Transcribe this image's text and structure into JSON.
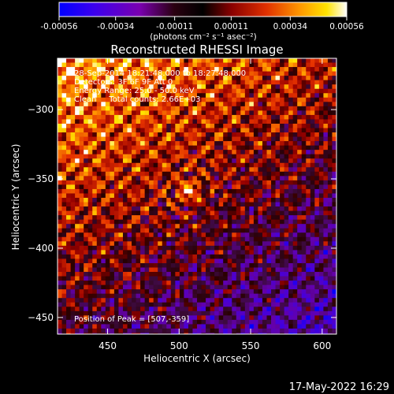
{
  "chart_data": {
    "type": "heatmap",
    "title": "Reconstructed RHESSI Image",
    "xlabel": "Heliocentric X (arcsec)",
    "ylabel": "Heliocentric Y (arcsec)",
    "xlim": [
      415,
      610
    ],
    "ylim": [
      -462,
      -263
    ],
    "x_ticks": [
      450,
      500,
      550,
      600
    ],
    "y_ticks": [
      -300,
      -350,
      -400,
      -450
    ],
    "colorbar": {
      "min": -0.00056,
      "max": 0.00056,
      "ticks": [
        "-0.00056",
        "-0.00034",
        "-0.00011",
        "0.00011",
        "0.00034",
        "0.00056"
      ],
      "tick_values": [
        -0.00056,
        -0.00034,
        -0.00011,
        0.00011,
        0.00034,
        0.00056
      ],
      "unit_label": "(photons cm⁻² s⁻¹ asec⁻²)"
    },
    "annotations": [
      "28-Sep-2014 18:21:48.000 to 18:27:48.000",
      "Detectors: 3F 6F 9F  Att 0",
      "Energy Range: 25.0 - 50.0 keV",
      "Clean     Total counts: 2.66E+03"
    ],
    "peak_text": "Position of Peak = [507,-359]",
    "peak": [
      507,
      -359
    ],
    "colormap": [
      "#0000ff",
      "#6a00b0",
      "#2a0000",
      "#b00000",
      "#ff5a00",
      "#ffd200",
      "#ffffff"
    ]
  },
  "footer": {
    "date": "17-May-2022 16:29"
  }
}
